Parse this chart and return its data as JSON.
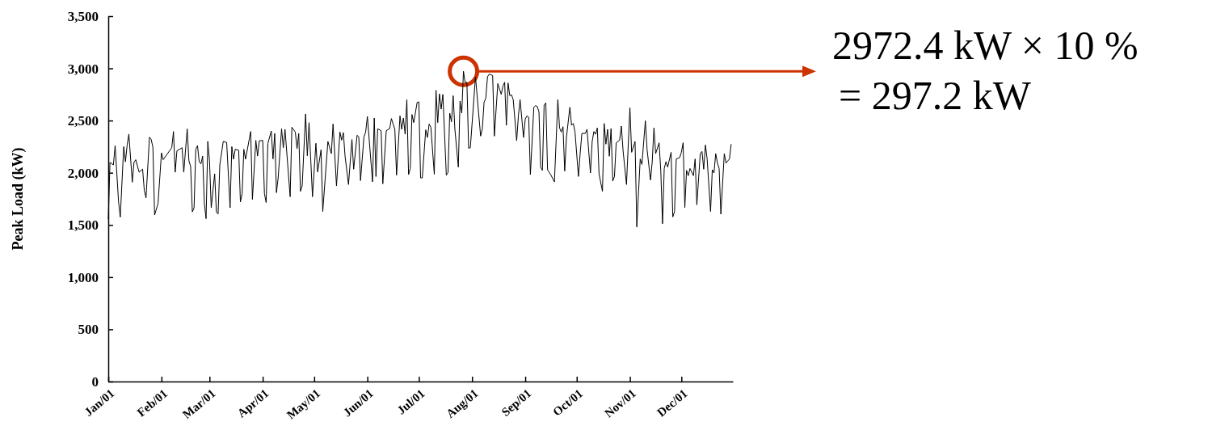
{
  "chart_data": {
    "type": "line",
    "ylabel": "Peak Load (kW)",
    "xlim": [
      "--01-01",
      "--12-31"
    ],
    "xticks": [
      {
        "value": "--01-01",
        "label": "Jan/01"
      },
      {
        "value": "--02-01",
        "label": "Feb/01"
      },
      {
        "value": "--03-01",
        "label": "Mar/01"
      },
      {
        "value": "--04-01",
        "label": "Apr/01"
      },
      {
        "value": "--05-01",
        "label": "May/01"
      },
      {
        "value": "--06-01",
        "label": "Jun/01"
      },
      {
        "value": "--07-01",
        "label": "Jul/01"
      },
      {
        "value": "--08-01",
        "label": "Aug/01"
      },
      {
        "value": "--09-01",
        "label": "Sep/01"
      },
      {
        "value": "--10-01",
        "label": "Oct/01"
      },
      {
        "value": "--11-01",
        "label": "Nov/01"
      },
      {
        "value": "--12-01",
        "label": "Dec/01"
      }
    ],
    "ylim": [
      0,
      3500
    ],
    "yticks": [
      {
        "value": 0,
        "label": "0"
      },
      {
        "value": 500,
        "label": "500"
      },
      {
        "value": 1000,
        "label": "1,000"
      },
      {
        "value": 1500,
        "label": "1,500"
      },
      {
        "value": 2000,
        "label": "2,000"
      },
      {
        "value": 2500,
        "label": "2,500"
      },
      {
        "value": 3000,
        "label": "3,000"
      },
      {
        "value": 3500,
        "label": "3,500"
      }
    ],
    "grid": false,
    "marker": "none",
    "line_style": "solid",
    "annotations": [
      "2972.4 kW × 10 %\n= 297.2 kW"
    ],
    "series": [
      {
        "color": "#000000",
        "x": [
          "--01-01",
          "--01-02",
          "--01-04",
          "--01-05",
          "--01-07",
          "--01-08",
          "--01-10",
          "--01-11",
          "--01-12",
          "--01-13",
          "--01-15",
          "--01-16",
          "--01-17",
          "--01-19",
          "--01-21",
          "--01-22",
          "--01-23",
          "--01-25",
          "--01-26",
          "--01-27",
          "--01-28",
          "--01-30",
          "--02-01",
          "--02-02",
          "--02-07",
          "--02-08",
          "--02-09",
          "--02-10",
          "--02-13",
          "--02-14",
          "--02-16",
          "--02-17",
          "--02-18",
          "--02-19",
          "--02-20",
          "--02-21",
          "--02-22",
          "--02-23",
          "--02-24",
          "--02-25",
          "--02-26",
          "--02-27",
          "--02-28",
          "--03-01",
          "--03-02",
          "--03-04",
          "--03-05",
          "--03-06",
          "--03-07",
          "--03-09",
          "--03-11",
          "--03-13",
          "--03-14",
          "--03-15",
          "--03-16",
          "--03-18",
          "--03-19",
          "--03-20",
          "--03-21",
          "--03-22",
          "--03-25",
          "--03-26",
          "--03-28",
          "--03-29",
          "--03-30",
          "--04-01",
          "--04-02",
          "--04-03",
          "--04-04",
          "--04-06",
          "--04-07",
          "--04-08",
          "--04-09",
          "--04-10",
          "--04-12",
          "--04-13",
          "--04-14",
          "--04-17",
          "--04-18",
          "--04-20",
          "--04-21",
          "--04-22",
          "--04-23",
          "--04-24",
          "--04-26",
          "--04-27",
          "--04-28",
          "--04-30",
          "--05-02",
          "--05-03",
          "--05-05",
          "--05-06",
          "--05-09",
          "--05-11",
          "--05-12",
          "--05-14",
          "--05-16",
          "--05-17",
          "--05-18",
          "--05-19",
          "--05-21",
          "--05-23",
          "--05-24",
          "--05-26",
          "--05-27",
          "--05-28",
          "--05-30",
          "--05-31",
          "--06-01",
          "--06-04",
          "--06-05",
          "--06-06",
          "--06-07",
          "--06-09",
          "--06-10",
          "--06-12",
          "--06-14",
          "--06-15",
          "--06-17",
          "--06-18",
          "--06-20",
          "--06-21",
          "--06-22",
          "--06-23",
          "--06-24",
          "--06-25",
          "--06-26",
          "--06-27",
          "--06-28",
          "--06-30",
          "--07-01",
          "--07-02",
          "--07-03",
          "--07-05",
          "--07-06",
          "--07-07",
          "--07-08",
          "--07-10",
          "--07-11",
          "--07-12",
          "--07-13",
          "--07-14",
          "--07-15",
          "--07-17",
          "--07-18",
          "--07-19",
          "--07-20",
          "--07-21",
          "--07-22",
          "--07-24",
          "--07-25",
          "--07-26",
          "--07-27",
          "--07-28",
          "--07-29",
          "--07-30",
          "--07-31",
          "--08-03",
          "--08-06",
          "--08-07",
          "--08-08",
          "--08-09",
          "--08-10",
          "--08-11",
          "--08-13",
          "--08-14",
          "--08-16",
          "--08-18",
          "--08-19",
          "--08-20",
          "--08-21",
          "--08-22",
          "--08-23",
          "--08-24",
          "--08-25",
          "--08-27",
          "--08-28",
          "--08-29",
          "--08-31",
          "--09-01",
          "--09-02",
          "--09-03",
          "--09-04",
          "--09-06",
          "--09-07",
          "--09-08",
          "--09-09",
          "--09-10",
          "--09-11",
          "--09-12",
          "--09-13",
          "--09-14",
          "--09-16",
          "--09-18",
          "--09-20",
          "--09-21",
          "--09-22",
          "--09-23",
          "--09-24",
          "--09-25",
          "--09-27",
          "--09-28",
          "--09-29",
          "--09-30",
          "--10-02",
          "--10-03",
          "--10-04",
          "--10-06",
          "--10-07",
          "--10-09",
          "--10-10",
          "--10-11",
          "--10-12",
          "--10-13",
          "--10-14",
          "--10-16",
          "--10-17",
          "--10-18",
          "--10-19",
          "--10-20",
          "--10-21",
          "--10-22",
          "--10-23",
          "--10-24",
          "--10-26",
          "--10-27",
          "--10-28",
          "--10-30",
          "--11-01",
          "--11-02",
          "--11-04",
          "--11-05",
          "--11-07",
          "--11-08",
          "--11-10",
          "--11-11",
          "--11-13",
          "--11-14",
          "--11-15",
          "--11-16",
          "--11-18",
          "--11-19",
          "--11-20",
          "--11-21",
          "--11-22",
          "--11-23",
          "--11-25",
          "--11-26",
          "--11-27",
          "--11-28",
          "--11-30",
          "--12-01",
          "--12-02",
          "--12-03",
          "--12-04",
          "--12-05",
          "--12-06",
          "--12-08",
          "--12-09",
          "--12-10",
          "--12-12",
          "--12-13",
          "--12-14",
          "--12-15",
          "--12-16",
          "--12-18",
          "--12-19",
          "--12-20",
          "--12-21",
          "--12-22",
          "--12-23",
          "--12-24",
          "--12-26",
          "--12-27",
          "--12-29",
          "--12-30"
        ],
        "values": [
          1555,
          2100,
          2075,
          2260,
          1720,
          1575,
          2250,
          2105,
          2265,
          2370,
          1910,
          2100,
          2125,
          2005,
          2035,
          1830,
          1760,
          2340,
          2320,
          2245,
          1595,
          1705,
          2190,
          2125,
          2240,
          2395,
          2005,
          2210,
          2240,
          2005,
          2420,
          2115,
          2060,
          1625,
          1665,
          2225,
          2260,
          2105,
          2085,
          2160,
          1705,
          1560,
          2300,
          2115,
          1665,
          1990,
          1625,
          1605,
          2075,
          2300,
          2290,
          1665,
          2250,
          2130,
          2225,
          2215,
          1720,
          1800,
          2225,
          2130,
          2395,
          1745,
          2310,
          2160,
          2305,
          2310,
          1800,
          1715,
          2280,
          2400,
          2132,
          2377,
          1809,
          1951,
          2421,
          2240,
          2416,
          1770,
          2436,
          2390,
          2230,
          2377,
          1822,
          1874,
          2563,
          2163,
          2480,
          1770,
          2282,
          2008,
          2220,
          1629,
          2300,
          2183,
          2467,
          1874,
          2390,
          2312,
          2385,
          2158,
          1887,
          2318,
          2034,
          2359,
          2343,
          1925,
          2343,
          2390,
          2540,
          1913,
          2524,
          1964,
          2421,
          2403,
          1894,
          2403,
          2423,
          2519,
          2416,
          1977,
          2545,
          2416,
          2524,
          2369,
          2700,
          1982,
          2041,
          2558,
          2480,
          2674,
          2679,
          1951,
          1951,
          2411,
          2338,
          2467,
          2436,
          1985,
          2790,
          2480,
          2756,
          2609,
          2751,
          1977,
          2003,
          2571,
          2488,
          2738,
          2416,
          2054,
          2687,
          2571,
          2972,
          2860,
          2867,
          2235,
          2240,
          2919,
          2351,
          2421,
          2674,
          2713,
          2919,
          2945,
          2932,
          2351,
          2855,
          2751,
          2829,
          2867,
          2454,
          2860,
          2738,
          2746,
          2700,
          2307,
          2545,
          2700,
          2338,
          2514,
          2545,
          2532,
          1982,
          2627,
          2643,
          2635,
          2583,
          2054,
          2023,
          2648,
          2669,
          2029,
          1977,
          1912,
          2700,
          2429,
          2390,
          2441,
          2016,
          2338,
          2627,
          2454,
          2472,
          2390,
          1964,
          2183,
          2377,
          2377,
          2416,
          1998,
          2300,
          2395,
          2369,
          2429,
          1990,
          1822,
          2472,
          2274,
          2416,
          2158,
          2423,
          1920,
          1964,
          2287,
          2312,
          2447,
          2214,
          1887,
          2622,
          2196,
          2300,
          1481,
          2132,
          2080,
          2498,
          2222,
          1930,
          2106,
          2429,
          2183,
          2287,
          2016,
          1512,
          2041,
          2106,
          2054,
          2196,
          1577,
          1629,
          2132,
          2145,
          2196,
          2287,
          1667,
          2023,
          1972,
          2041,
          1972,
          2132,
          1693,
          2183,
          2204,
          2034,
          2266,
          2132,
          1629,
          2029,
          1998,
          2183,
          2093,
          2041,
          1603,
          2183,
          2093,
          2132,
          2274
        ]
      }
    ]
  }
}
